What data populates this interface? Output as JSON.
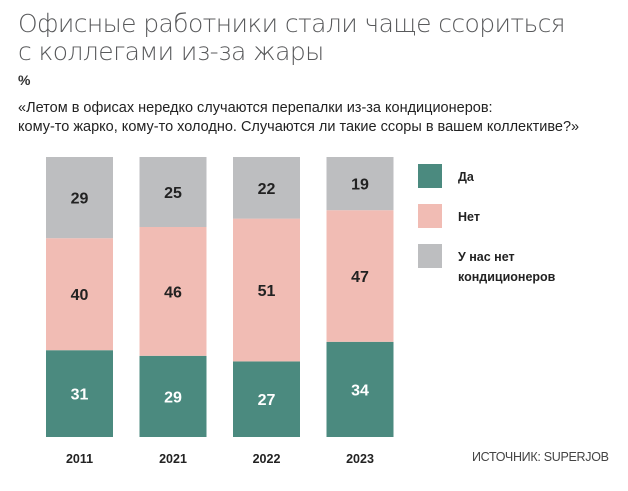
{
  "title_lines": [
    "Офисные работники стали чаще ссориться",
    "с коллегами из-за жары"
  ],
  "unit": "%",
  "question_lines": [
    "«Летом в офисах нередко случаются перепалки из-за кондиционеров:",
    "кому-то жарко, кому-то холодно. Случаются ли такие ссоры в вашем коллективе?»"
  ],
  "legend": [
    {
      "label": "Да",
      "color": "#4b8a7f"
    },
    {
      "label": "Нет",
      "color": "#f1bcb4"
    },
    {
      "label": "У нас нет кондиционеров",
      "color": "#bdbec0"
    }
  ],
  "source": "ИСТОЧНИК: SUPERJOB",
  "chart_data": {
    "type": "bar",
    "stacked": true,
    "categories": [
      "2011",
      "2021",
      "2022",
      "2023"
    ],
    "series": [
      {
        "name": "Да",
        "values": [
          31,
          29,
          27,
          34
        ],
        "color": "#4b8a7f"
      },
      {
        "name": "Нет",
        "values": [
          40,
          46,
          51,
          47
        ],
        "color": "#f1bcb4"
      },
      {
        "name": "У нас нет кондиционеров",
        "values": [
          29,
          25,
          22,
          19
        ],
        "color": "#bdbec0"
      }
    ],
    "ylim": [
      0,
      100
    ],
    "unit": "%",
    "grid": false,
    "legend_position": "right"
  }
}
